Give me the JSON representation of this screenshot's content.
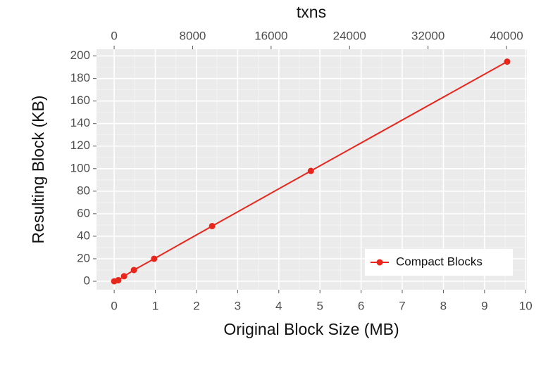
{
  "chart_data": {
    "type": "line",
    "x_label": "Original Block Size (MB)",
    "y_label": "Resulting Block (KB)",
    "x2_label": "txns",
    "x": [
      0,
      0.1,
      0.24,
      0.48,
      0.97,
      2.38,
      4.78,
      9.55
    ],
    "series": [
      {
        "name": "Compact Blocks",
        "color": "#e8261c",
        "values": [
          0,
          1,
          4.5,
          10,
          20,
          49,
          98,
          195
        ]
      }
    ],
    "xlim": [
      -0.43,
      10.03
    ],
    "xticks": [
      0,
      1,
      2,
      3,
      4,
      5,
      6,
      7,
      8,
      9,
      10
    ],
    "x2lim": [
      -1800,
      42080
    ],
    "x2ticks": [
      0,
      8000,
      16000,
      24000,
      32000,
      40000
    ],
    "ylim": [
      -7.5,
      206
    ],
    "yticks": [
      0,
      20,
      40,
      60,
      80,
      100,
      120,
      140,
      160,
      180,
      200
    ],
    "grid": true,
    "legend": "bottom-right"
  }
}
